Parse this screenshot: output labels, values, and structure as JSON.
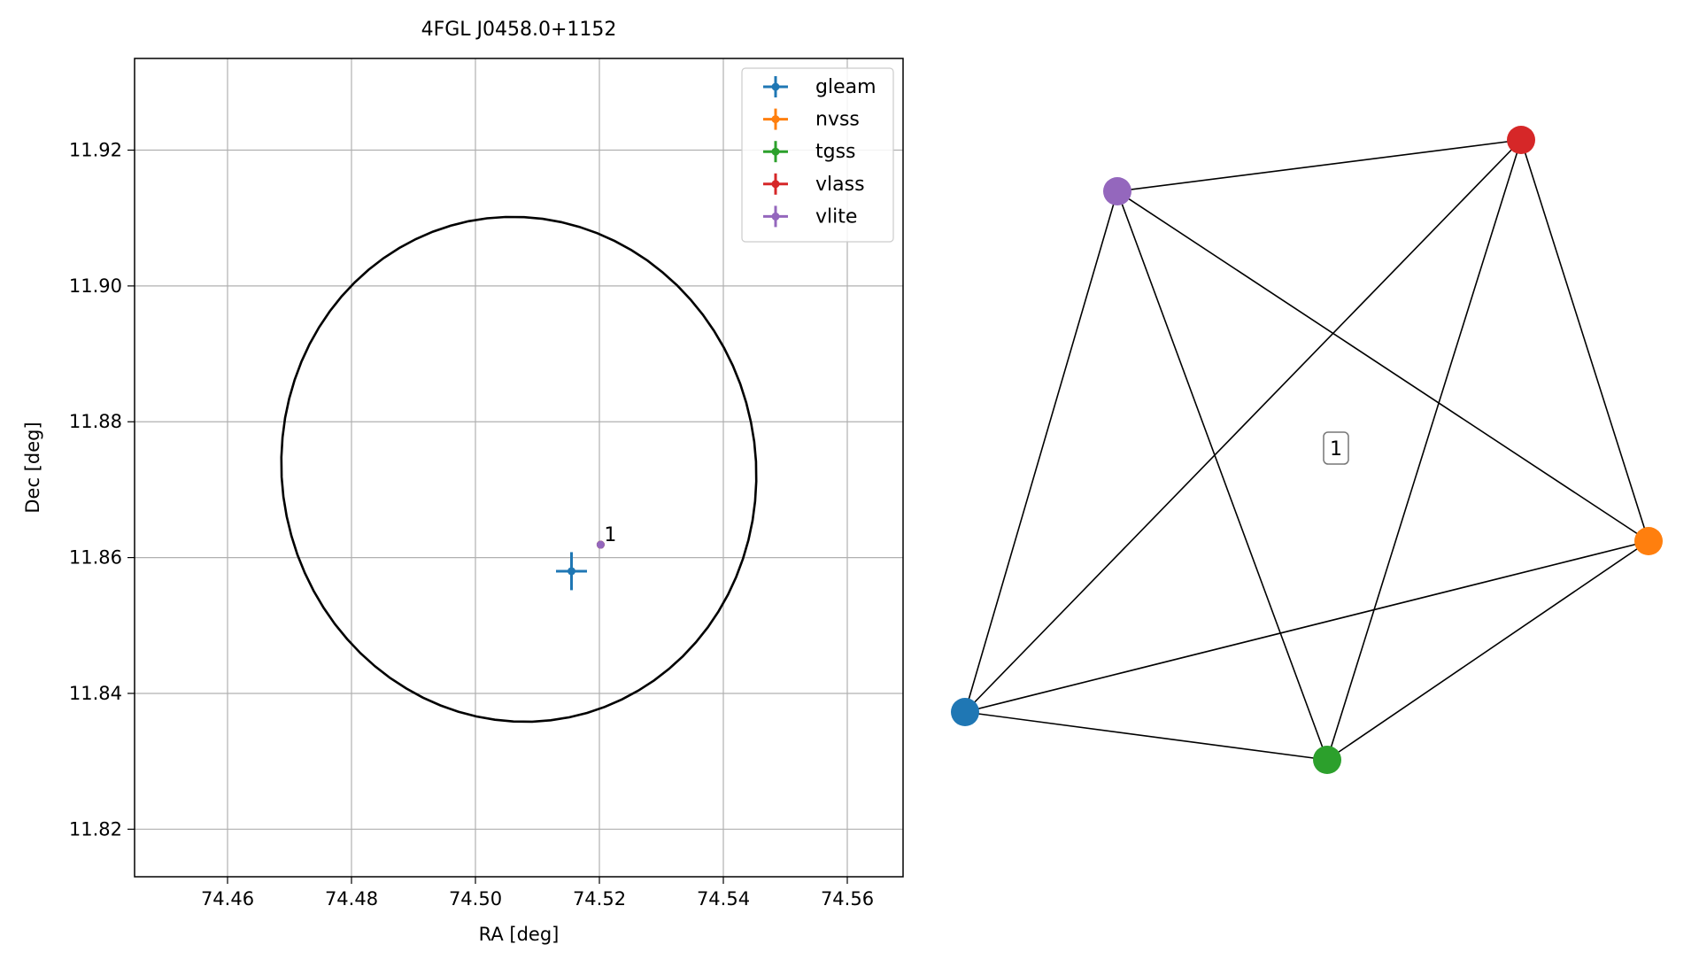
{
  "chart_data": [
    {
      "type": "scatter",
      "title": "4FGL J0458.0+1152",
      "xlabel": "RA [deg]",
      "ylabel": "Dec [deg]",
      "xlim": [
        74.445,
        74.569
      ],
      "ylim": [
        11.813,
        11.9335
      ],
      "xticks": [
        74.46,
        74.48,
        74.5,
        74.52,
        74.54,
        74.56
      ],
      "xtick_labels": [
        "74.46",
        "74.48",
        "74.50",
        "74.52",
        "74.54",
        "74.56"
      ],
      "yticks": [
        11.82,
        11.84,
        11.86,
        11.88,
        11.9,
        11.92
      ],
      "ytick_labels": [
        "11.82",
        "11.84",
        "11.86",
        "11.88",
        "11.90",
        "11.92"
      ],
      "grid": true,
      "legend_position": "top-right",
      "series": [
        {
          "name": "gleam",
          "color": "#1f77b4",
          "x": 74.5155,
          "y": 11.858,
          "x_err": 0.0025,
          "y_err": 0.0028
        },
        {
          "name": "nvss",
          "color": "#ff7f0e",
          "x": 74.5202,
          "y": 11.8619,
          "x_err": 0.0001,
          "y_err": 0.0001
        },
        {
          "name": "tgss",
          "color": "#2ca02c",
          "x": 74.5202,
          "y": 11.8619,
          "x_err": 0.0001,
          "y_err": 0.0001
        },
        {
          "name": "vlass",
          "color": "#d62728",
          "x": 74.5202,
          "y": 11.8619,
          "x_err": 0.0001,
          "y_err": 0.0001
        },
        {
          "name": "vlite",
          "color": "#9467bd",
          "x": 74.5202,
          "y": 11.8619,
          "x_err": 0.0001,
          "y_err": 0.0001
        }
      ],
      "annotations": [
        {
          "text": "1",
          "x": 74.5202,
          "y": 11.8619
        }
      ],
      "ellipse": {
        "center": [
          74.507,
          11.873
        ],
        "semi_axis_ra": 0.0385,
        "semi_axis_dec": 0.037,
        "tilt_deg": -20,
        "color": "#000000"
      }
    },
    {
      "type": "network",
      "label": "1",
      "nodes": [
        {
          "name": "gleam",
          "color": "#1f77b4"
        },
        {
          "name": "nvss",
          "color": "#ff7f0e"
        },
        {
          "name": "tgss",
          "color": "#2ca02c"
        },
        {
          "name": "vlass",
          "color": "#d62728"
        },
        {
          "name": "vlite",
          "color": "#9467bd"
        }
      ],
      "edges": [
        [
          "gleam",
          "nvss"
        ],
        [
          "gleam",
          "tgss"
        ],
        [
          "gleam",
          "vlass"
        ],
        [
          "gleam",
          "vlite"
        ],
        [
          "nvss",
          "tgss"
        ],
        [
          "nvss",
          "vlass"
        ],
        [
          "nvss",
          "vlite"
        ],
        [
          "tgss",
          "vlass"
        ],
        [
          "tgss",
          "vlite"
        ],
        [
          "vlass",
          "vlite"
        ]
      ]
    }
  ]
}
